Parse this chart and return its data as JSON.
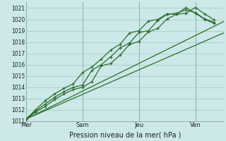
{
  "xlabel": "Pression niveau de la mer( hPa )",
  "bg_color": "#cce8e8",
  "grid_color": "#99ccbb",
  "line_color": "#2d6e2d",
  "vline_color": "#4a7a6a",
  "ylim": [
    1011,
    1021.5
  ],
  "xlim": [
    0,
    10.5
  ],
  "yticks": [
    1011,
    1012,
    1013,
    1014,
    1015,
    1016,
    1017,
    1018,
    1019,
    1020,
    1021
  ],
  "day_labels": [
    "Mer",
    "Sam",
    "Jeu",
    "Ven"
  ],
  "day_positions": [
    0,
    3,
    6,
    9
  ],
  "series": [
    {
      "x": [
        0.0,
        10.5
      ],
      "y": [
        1011.2,
        1018.8
      ],
      "marker": null
    },
    {
      "x": [
        0.0,
        10.5
      ],
      "y": [
        1011.2,
        1019.8
      ],
      "marker": null
    },
    {
      "x": [
        0.0,
        0.5,
        1.0,
        1.5,
        2.0,
        2.5,
        3.0,
        3.5,
        4.0,
        4.5,
        5.0,
        5.5,
        6.0,
        6.5,
        7.0,
        7.5,
        8.0,
        8.5,
        9.0,
        9.5,
        10.0
      ],
      "y": [
        1011.2,
        1012.0,
        1012.8,
        1013.4,
        1013.9,
        1014.3,
        1015.3,
        1015.8,
        1016.5,
        1017.3,
        1017.8,
        1018.8,
        1019.0,
        1019.85,
        1020.0,
        1020.5,
        1020.45,
        1021.05,
        1020.55,
        1020.0,
        1019.65
      ],
      "marker": "+"
    },
    {
      "x": [
        0.0,
        0.5,
        1.0,
        1.5,
        2.0,
        2.5,
        3.0,
        3.5,
        4.0,
        4.5,
        5.0,
        5.5,
        6.0,
        6.5,
        7.0,
        7.5,
        8.0,
        8.5,
        9.0,
        9.5,
        10.0
      ],
      "y": [
        1011.2,
        1011.9,
        1012.5,
        1013.1,
        1013.6,
        1014.0,
        1014.2,
        1015.5,
        1016.0,
        1016.7,
        1017.5,
        1017.9,
        1018.85,
        1019.0,
        1019.9,
        1020.45,
        1020.55,
        1020.85,
        1020.6,
        1020.05,
        1019.75
      ],
      "marker": "+"
    },
    {
      "x": [
        0.0,
        0.5,
        1.0,
        1.5,
        2.0,
        2.5,
        3.0,
        3.5,
        4.0,
        4.5,
        5.0,
        5.5,
        6.0,
        6.5,
        7.0,
        7.5,
        8.0,
        8.5,
        9.0,
        9.5,
        10.0
      ],
      "y": [
        1011.2,
        1011.8,
        1012.3,
        1012.9,
        1013.4,
        1013.8,
        1014.0,
        1014.5,
        1015.9,
        1016.1,
        1016.85,
        1017.8,
        1018.05,
        1018.9,
        1019.2,
        1020.05,
        1020.45,
        1020.55,
        1021.05,
        1020.5,
        1019.95
      ],
      "marker": "+"
    }
  ],
  "xlabel_fontsize": 7,
  "ytick_fontsize": 5.5,
  "xtick_fontsize": 6
}
